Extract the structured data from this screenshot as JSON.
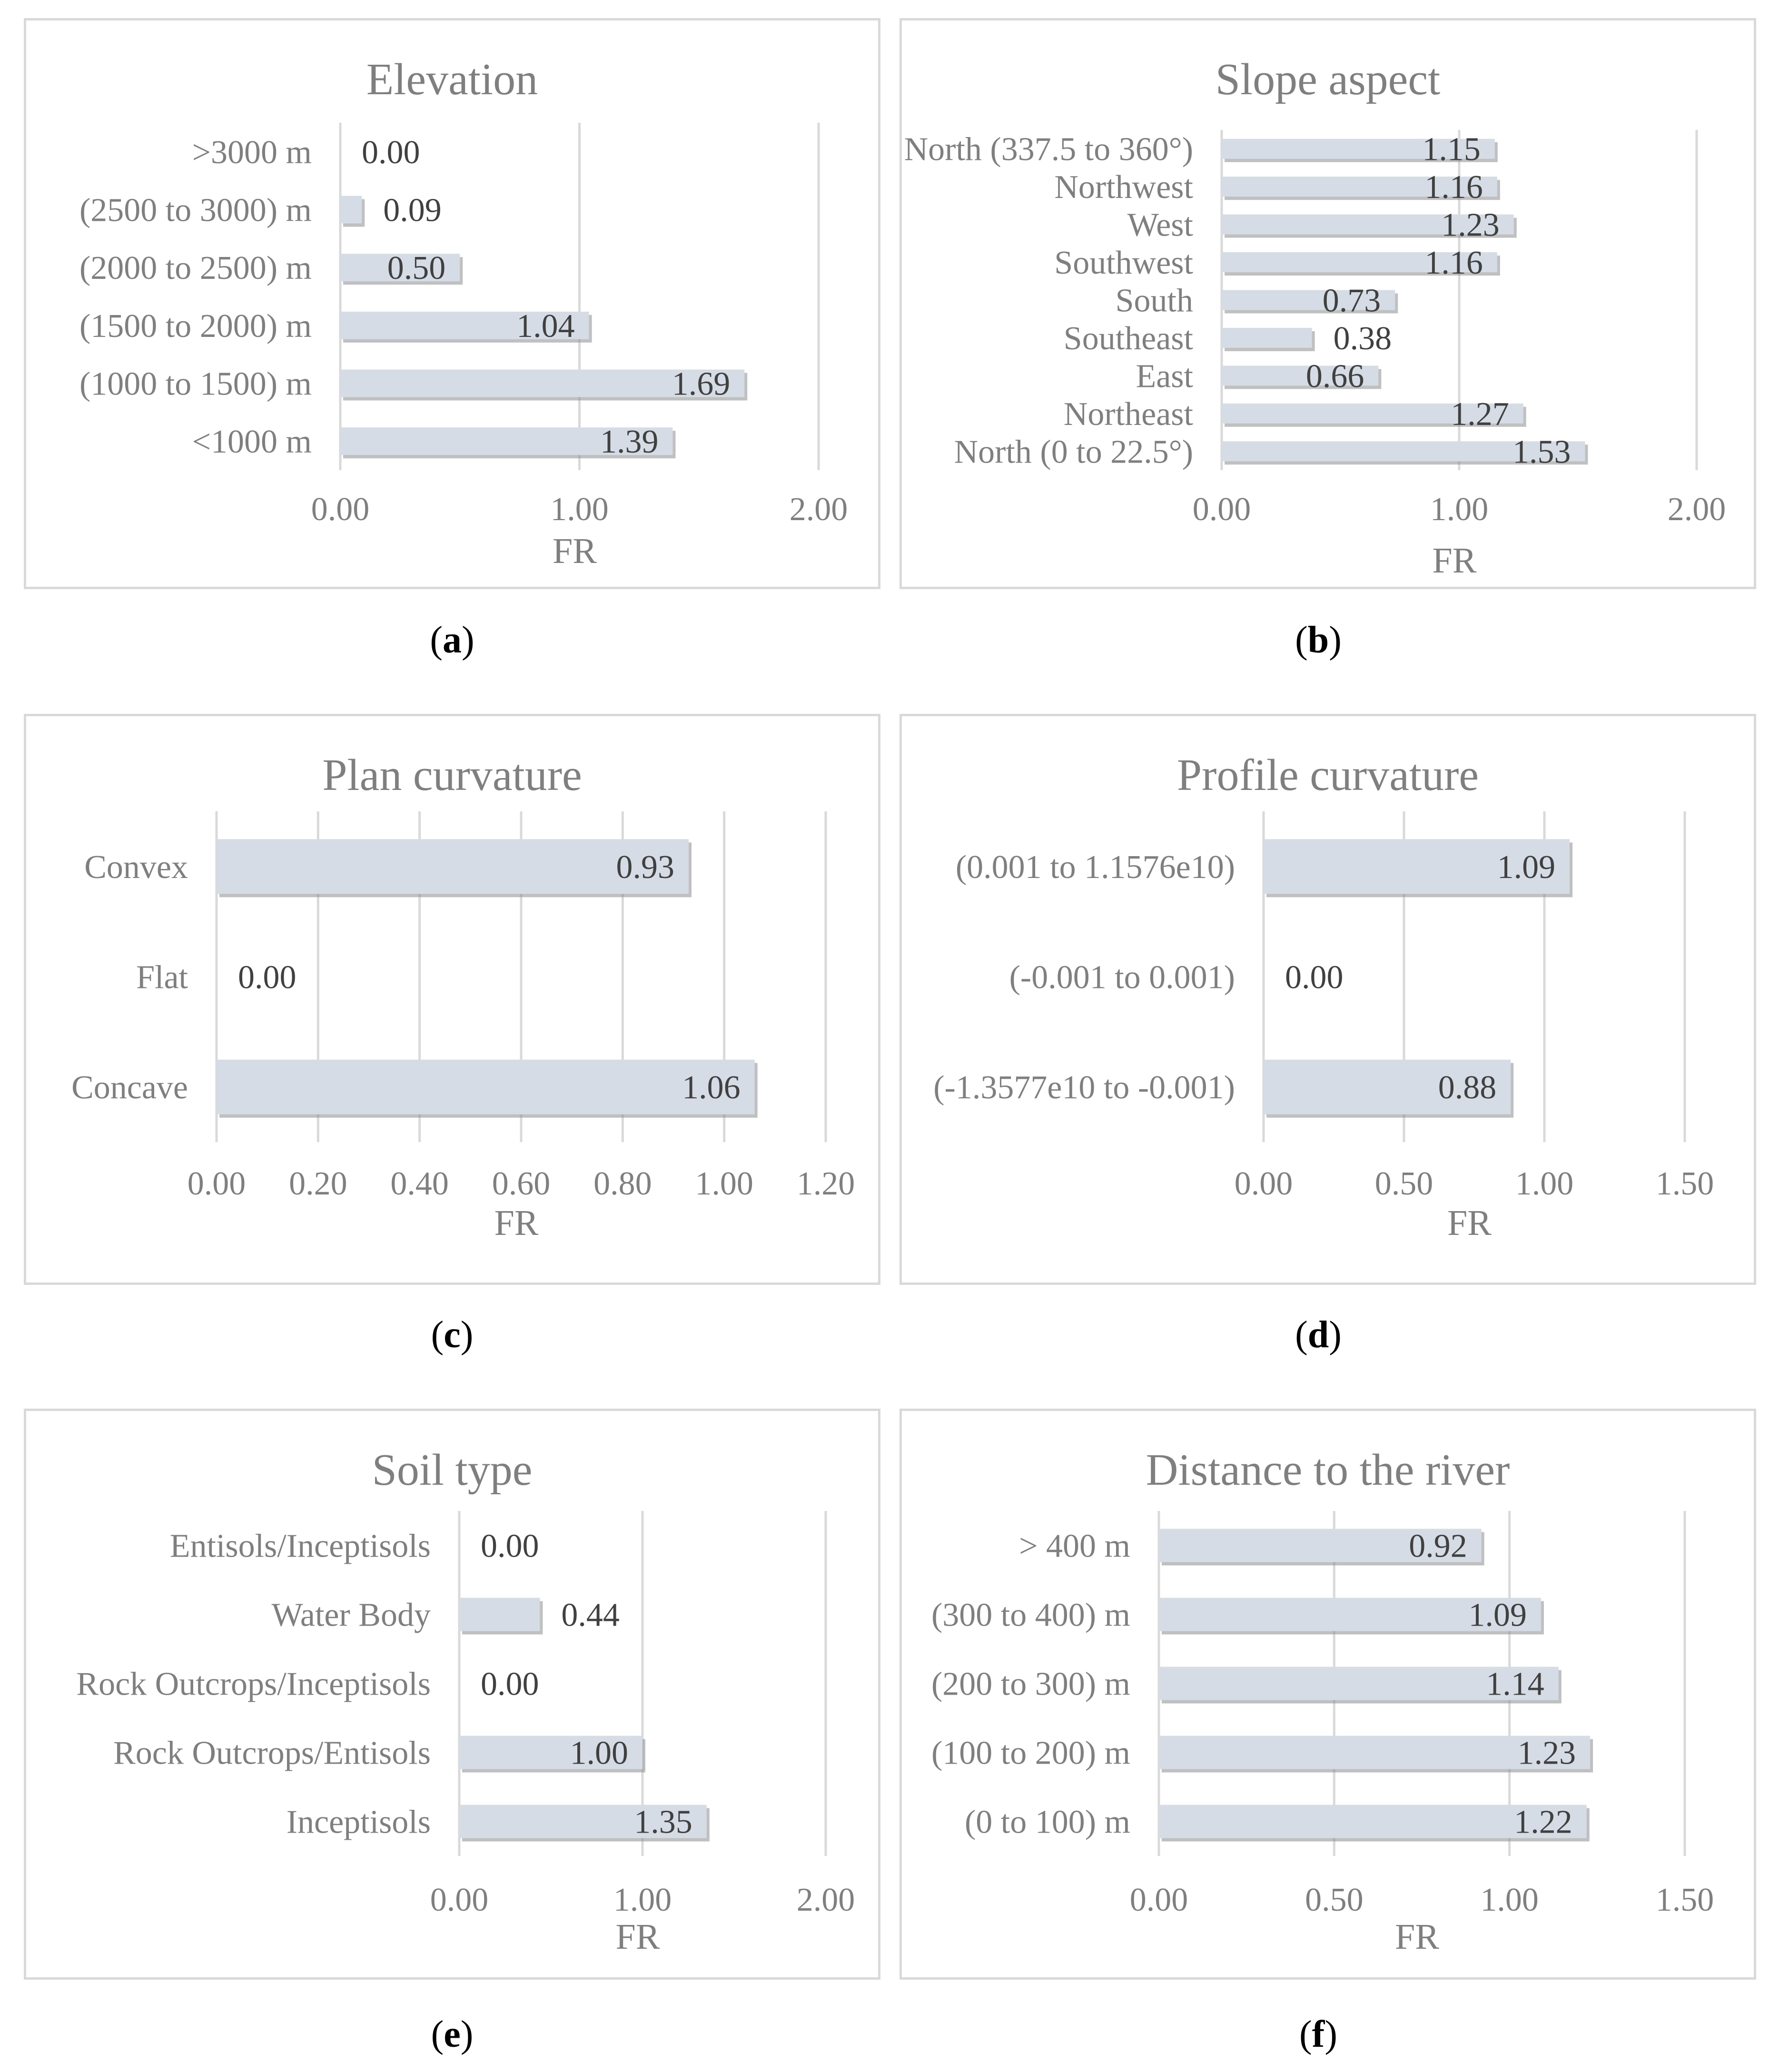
{
  "colors": {
    "bar": "#d6dce5",
    "shadow": "#8c8c8c",
    "grid": "#d9d9d9",
    "border": "#d9d9d9",
    "text": "#7f7f7f",
    "label": "#404040"
  },
  "chart_data": [
    {
      "id": "a",
      "type": "bar",
      "orientation": "horizontal",
      "title": "Elevation",
      "caption": "a",
      "categories": [
        ">3000 m",
        "(2500 to 3000) m",
        "(2000 to 2500) m",
        "(1500 to 2000) m",
        "(1000 to 1500) m",
        "<1000 m"
      ],
      "values": [
        0.0,
        0.09,
        0.5,
        1.04,
        1.69,
        1.39
      ],
      "value_labels": [
        "0.00",
        "0.09",
        "0.50",
        "1.04",
        "1.69",
        "1.39"
      ],
      "xlabel": "FR",
      "ylabel": "",
      "xlim": [
        0,
        2
      ],
      "ticks": [
        0,
        1,
        2
      ],
      "tick_labels": [
        "0.00",
        "1.00",
        "2.00"
      ]
    },
    {
      "id": "b",
      "type": "bar",
      "orientation": "horizontal",
      "title": "Slope aspect",
      "caption": "b",
      "categories": [
        "North (337.5 to 360°)",
        "Northwest",
        "West",
        "Southwest",
        "South",
        "Southeast",
        "East",
        "Northeast",
        "North (0 to 22.5°)"
      ],
      "values": [
        1.15,
        1.16,
        1.23,
        1.16,
        0.73,
        0.38,
        0.66,
        1.27,
        1.53
      ],
      "value_labels": [
        "1.15",
        "1.16",
        "1.23",
        "1.16",
        "0.73",
        "0.38",
        "0.66",
        "1.27",
        "1.53"
      ],
      "xlabel": "FR",
      "ylabel": "",
      "xlim": [
        0,
        2
      ],
      "ticks": [
        0,
        1,
        2
      ],
      "tick_labels": [
        "0.00",
        "1.00",
        "2.00"
      ]
    },
    {
      "id": "c",
      "type": "bar",
      "orientation": "horizontal",
      "title": "Plan curvature",
      "caption": "c",
      "categories": [
        "Convex",
        "Flat",
        "Concave"
      ],
      "values": [
        0.93,
        0.0,
        1.06
      ],
      "value_labels": [
        "0.93",
        "0.00",
        "1.06"
      ],
      "xlabel": "FR",
      "ylabel": "",
      "xlim": [
        0,
        1.2
      ],
      "ticks": [
        0,
        0.2,
        0.4,
        0.6,
        0.8,
        1.0,
        1.2
      ],
      "tick_labels": [
        "0.00",
        "0.20",
        "0.40",
        "0.60",
        "0.80",
        "1.00",
        "1.20"
      ]
    },
    {
      "id": "d",
      "type": "bar",
      "orientation": "horizontal",
      "title": "Profile curvature",
      "caption": "d",
      "categories": [
        "(0.001 to 1.1576e10)",
        "(-0.001 to 0.001)",
        "(-1.3577e10 to -0.001)"
      ],
      "values": [
        1.09,
        0.0,
        0.88
      ],
      "value_labels": [
        "1.09",
        "0.00",
        "0.88"
      ],
      "xlabel": "FR",
      "ylabel": "",
      "xlim": [
        0,
        1.5
      ],
      "ticks": [
        0,
        0.5,
        1.0,
        1.5
      ],
      "tick_labels": [
        "0.00",
        "0.50",
        "1.00",
        "1.50"
      ]
    },
    {
      "id": "e",
      "type": "bar",
      "orientation": "horizontal",
      "title": "Soil type",
      "caption": "e",
      "categories": [
        "Entisols/Inceptisols",
        "Water Body",
        "Rock Outcrops/Inceptisols",
        "Rock Outcrops/Entisols",
        "Inceptisols"
      ],
      "values": [
        0.0,
        0.44,
        0.0,
        1.0,
        1.35
      ],
      "value_labels": [
        "0.00",
        "0.44",
        "0.00",
        "1.00",
        "1.35"
      ],
      "xlabel": "FR",
      "ylabel": "",
      "xlim": [
        0,
        2
      ],
      "ticks": [
        0,
        1,
        2
      ],
      "tick_labels": [
        "0.00",
        "1.00",
        "2.00"
      ]
    },
    {
      "id": "f",
      "type": "bar",
      "orientation": "horizontal",
      "title": "Distance to the river",
      "caption": "f",
      "categories": [
        "> 400 m",
        "(300 to 400) m",
        "(200 to 300) m",
        "(100 to 200) m",
        "(0 to 100) m"
      ],
      "values": [
        0.92,
        1.09,
        1.14,
        1.23,
        1.22
      ],
      "value_labels": [
        "0.92",
        "1.09",
        "1.14",
        "1.23",
        "1.22"
      ],
      "xlabel": "FR",
      "ylabel": "",
      "xlim": [
        0,
        1.5
      ],
      "ticks": [
        0,
        0.5,
        1.0,
        1.5
      ],
      "tick_labels": [
        "0.00",
        "0.50",
        "1.00",
        "1.50"
      ]
    }
  ]
}
